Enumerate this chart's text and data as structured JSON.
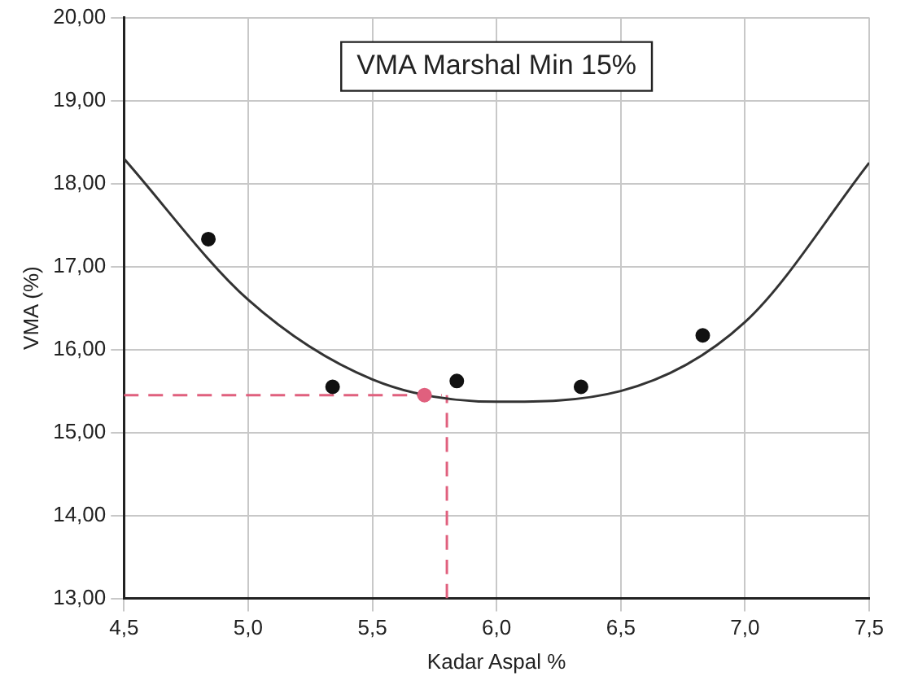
{
  "chart_data": {
    "type": "scatter",
    "xlabel": "Kadar Aspal %",
    "ylabel": "VMA (%)",
    "annotations": [
      "VMA Marshal Min 15%"
    ],
    "xlim": [
      4.5,
      7.5
    ],
    "ylim": [
      13,
      20
    ],
    "xticks": [
      {
        "value": 4.5,
        "label": "4,5"
      },
      {
        "value": 5,
        "label": "5,0"
      },
      {
        "value": 5.5,
        "label": "5,5"
      },
      {
        "value": 6,
        "label": "6,0"
      },
      {
        "value": 6.5,
        "label": "6,5"
      },
      {
        "value": 7,
        "label": "7,0"
      },
      {
        "value": 7.5,
        "label": "7,5"
      }
    ],
    "yticks": [
      {
        "value": 13,
        "label": "13,00"
      },
      {
        "value": 14,
        "label": "14,00"
      },
      {
        "value": 15,
        "label": "15,00"
      },
      {
        "value": 16,
        "label": "16,00"
      },
      {
        "value": 17,
        "label": "17,00"
      },
      {
        "value": 18,
        "label": "18,00"
      },
      {
        "value": 19,
        "label": "19,00"
      },
      {
        "value": 20,
        "label": "20,00"
      }
    ],
    "grid": true,
    "legend": false,
    "series": [
      {
        "type": "line",
        "color": "#333333",
        "marker": "none",
        "line_style": "solid",
        "x": [
          4.5,
          5.0,
          5.5,
          6.0,
          6.5,
          7.0,
          7.5
        ],
        "values": [
          18.3,
          16.6,
          15.64,
          15.37,
          15.5,
          16.33,
          18.25
        ]
      },
      {
        "color": "#111111",
        "marker": "circle",
        "x": [
          4.84,
          5.34,
          5.84,
          6.34,
          6.83
        ],
        "values": [
          17.33,
          15.55,
          15.62,
          15.55,
          16.17
        ]
      },
      {
        "type": "line",
        "color": "#e0607e",
        "marker": "none",
        "line_style": "dashed",
        "x": [
          4.5,
          5.78
        ],
        "values": [
          15.45,
          15.45
        ]
      },
      {
        "type": "line",
        "color": "#e0607e",
        "marker": "none",
        "line_style": "dashed",
        "x": [
          5.8,
          5.8
        ],
        "values": [
          13,
          15.45
        ]
      },
      {
        "color": "#e0607e",
        "marker": "circle",
        "x": [
          5.71
        ],
        "values": [
          15.45
        ]
      }
    ]
  }
}
